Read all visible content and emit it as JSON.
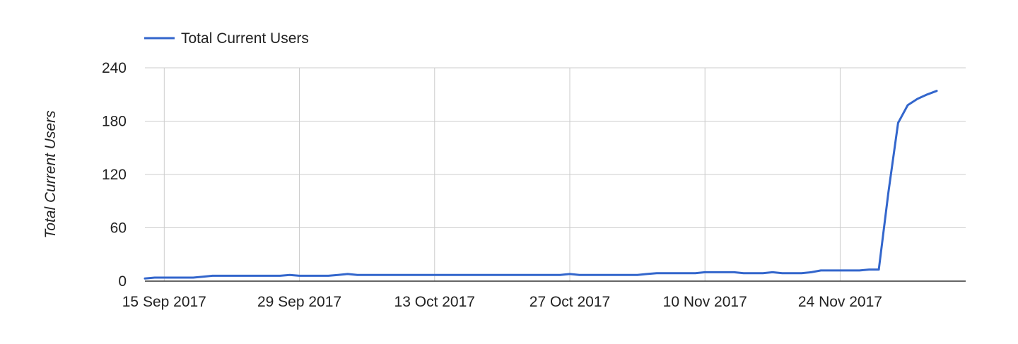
{
  "chart_data": {
    "type": "line",
    "title": "",
    "xlabel": "",
    "ylabel": "Total Current Users",
    "ylim": [
      0,
      240
    ],
    "yticks": [
      "0",
      "60",
      "120",
      "180",
      "240"
    ],
    "xlim": [
      "2017-09-13",
      "2017-12-07"
    ],
    "xticks": [
      {
        "date": "2017-09-15",
        "label": "15 Sep 2017"
      },
      {
        "date": "2017-09-29",
        "label": "29 Sep 2017"
      },
      {
        "date": "2017-10-13",
        "label": "13 Oct 2017"
      },
      {
        "date": "2017-10-27",
        "label": "27 Oct 2017"
      },
      {
        "date": "2017-11-10",
        "label": "10 Nov 2017"
      },
      {
        "date": "2017-11-24",
        "label": "24 Nov 2017"
      }
    ],
    "grid": true,
    "legend_position": "top-left",
    "series": [
      {
        "name": "Total Current Users",
        "color": "#3366cc",
        "points": [
          [
            "2017-09-13",
            3
          ],
          [
            "2017-09-14",
            4
          ],
          [
            "2017-09-15",
            4
          ],
          [
            "2017-09-17",
            4
          ],
          [
            "2017-09-18",
            4
          ],
          [
            "2017-09-19",
            5
          ],
          [
            "2017-09-20",
            6
          ],
          [
            "2017-09-22",
            6
          ],
          [
            "2017-09-25",
            6
          ],
          [
            "2017-09-27",
            6
          ],
          [
            "2017-09-28",
            7
          ],
          [
            "2017-09-29",
            6
          ],
          [
            "2017-10-01",
            6
          ],
          [
            "2017-10-02",
            6
          ],
          [
            "2017-10-03",
            7
          ],
          [
            "2017-10-04",
            8
          ],
          [
            "2017-10-05",
            7
          ],
          [
            "2017-10-08",
            7
          ],
          [
            "2017-10-13",
            7
          ],
          [
            "2017-10-20",
            7
          ],
          [
            "2017-10-26",
            7
          ],
          [
            "2017-10-27",
            8
          ],
          [
            "2017-10-28",
            7
          ],
          [
            "2017-11-01",
            7
          ],
          [
            "2017-11-03",
            7
          ],
          [
            "2017-11-04",
            8
          ],
          [
            "2017-11-05",
            9
          ],
          [
            "2017-11-07",
            9
          ],
          [
            "2017-11-09",
            9
          ],
          [
            "2017-11-10",
            10
          ],
          [
            "2017-11-13",
            10
          ],
          [
            "2017-11-14",
            9
          ],
          [
            "2017-11-16",
            9
          ],
          [
            "2017-11-17",
            10
          ],
          [
            "2017-11-18",
            9
          ],
          [
            "2017-11-20",
            9
          ],
          [
            "2017-11-21",
            10
          ],
          [
            "2017-11-22",
            12
          ],
          [
            "2017-11-25",
            12
          ],
          [
            "2017-11-26",
            12
          ],
          [
            "2017-11-27",
            13
          ],
          [
            "2017-11-28",
            13
          ],
          [
            "2017-11-29",
            100
          ],
          [
            "2017-11-30",
            178
          ],
          [
            "2017-12-01",
            198
          ],
          [
            "2017-12-02",
            205
          ],
          [
            "2017-12-03",
            210
          ],
          [
            "2017-12-04",
            214
          ]
        ]
      }
    ]
  }
}
